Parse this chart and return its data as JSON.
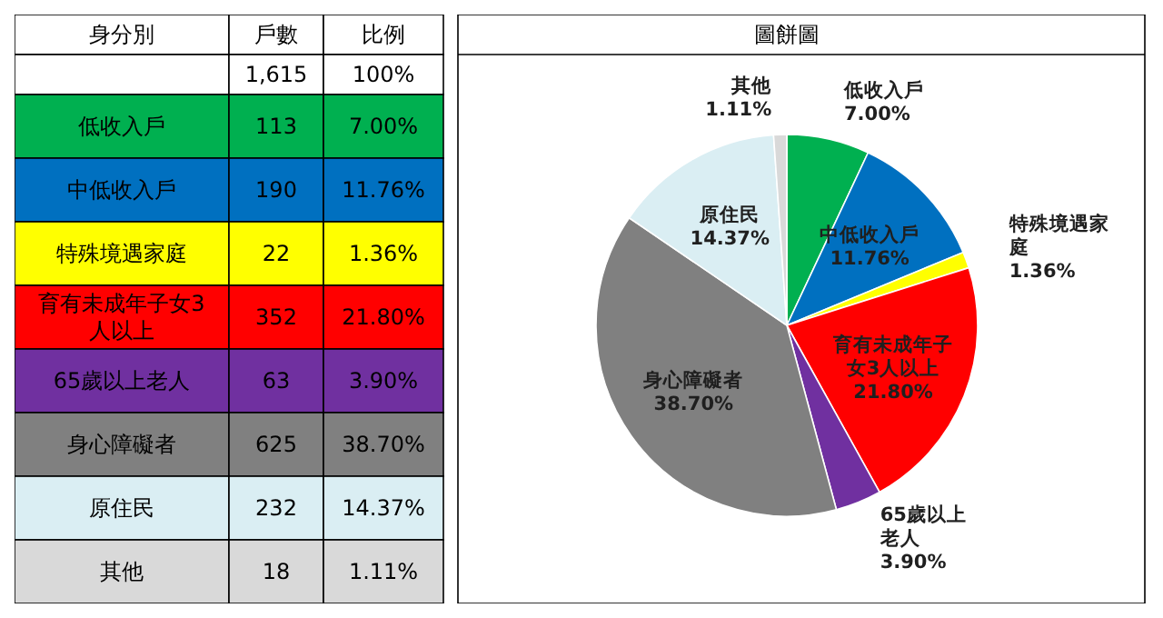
{
  "chart_data": {
    "type": "pie",
    "title": "圖餅圖",
    "categories": [
      "低收入戶",
      "中低收入戶",
      "特殊境遇家庭",
      "育有未成年子女3人以上",
      "65歲以上老人",
      "身心障礙者",
      "原住民",
      "其他"
    ],
    "values": [
      7.0,
      11.76,
      1.36,
      21.8,
      3.9,
      38.7,
      14.37,
      1.11
    ],
    "value_labels": [
      "7.00%",
      "11.76%",
      "1.36%",
      "21.80%",
      "3.90%",
      "38.70%",
      "14.37%",
      "1.11%"
    ],
    "colors": [
      "#00b050",
      "#0070c0",
      "#ffff00",
      "#ff0000",
      "#7030a0",
      "#808080",
      "#daeef3",
      "#d9d9d9"
    ],
    "annotations": [
      "身分別",
      "戶數",
      "比例",
      "1,615",
      "100%",
      "113",
      "190",
      "22",
      "352",
      "63",
      "625",
      "232",
      "18"
    ],
    "data_labels": true
  }
}
